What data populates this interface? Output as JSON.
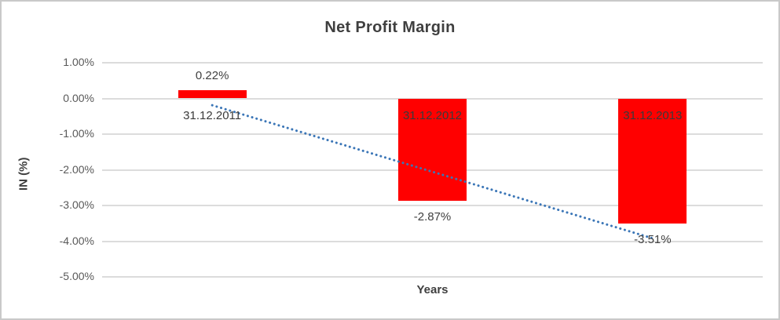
{
  "chart_data": {
    "type": "bar",
    "title": "Net Profit Margin",
    "xlabel": "Years",
    "ylabel": "IN (%)",
    "categories": [
      "31.12.2011",
      "31.12.2012",
      "31.12.2013"
    ],
    "values": [
      0.22,
      -2.87,
      -3.51
    ],
    "value_labels": [
      "0.22%",
      "-2.87%",
      "-3.51%"
    ],
    "ylim": [
      -5,
      1
    ],
    "yticks": [
      1,
      0,
      -1,
      -2,
      -3,
      -4,
      -5
    ],
    "ytick_labels": [
      "1.00%",
      "0.00%",
      "-1.00%",
      "-2.00%",
      "-3.00%",
      "-4.00%",
      "-5.00%"
    ],
    "grid": true,
    "legend": "none",
    "bar_color": "#ff0000",
    "gridline_color": "#dcdcdc",
    "trendline": {
      "style": "dotted",
      "color": "#3b76b7",
      "start_value": -0.19,
      "end_value": -3.92
    }
  }
}
